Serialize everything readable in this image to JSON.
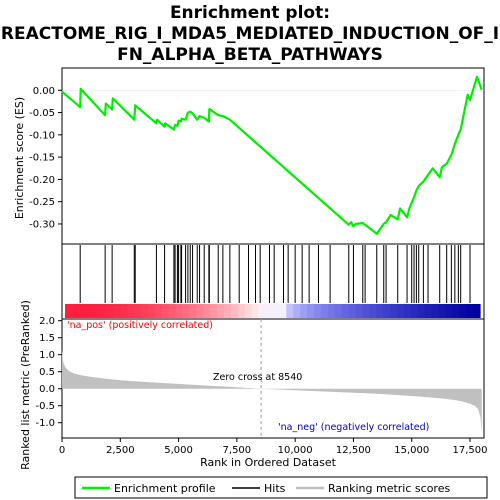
{
  "title_line1": "Enrichment plot:",
  "title_line2": "REACTOME_RIG_I_MDA5_MEDIATED_INDUCTION_OF_I",
  "title_line3": "FN_ALPHA_BETA_PATHWAYS",
  "colors": {
    "enrichment_line": "#00ee00",
    "hits": "#000000",
    "metric_fill": "#c0c0c0",
    "pos_label": "#ff0000",
    "neg_label": "#0000cc",
    "zero_cross_line": "#a0a0a0",
    "frame": "#000000"
  },
  "chart_data": [
    {
      "type": "line",
      "panel": "enrichment",
      "ylabel": "Enrichment score (ES)",
      "ylim": [
        -0.345,
        0.05
      ],
      "yticks": [
        -0.3,
        -0.25,
        -0.2,
        -0.15,
        -0.1,
        -0.05,
        0.0
      ],
      "ytick_labels": [
        "-0.30",
        "-0.25",
        "-0.20",
        "-0.15",
        "-0.10",
        "-0.05",
        "0.00"
      ],
      "xlim": [
        0,
        18100
      ],
      "grid": false,
      "series": [
        {
          "name": "Enrichment profile",
          "x": [
            0,
            780,
            800,
            1850,
            1880,
            2150,
            2180,
            3100,
            3140,
            4050,
            4080,
            4400,
            4420,
            4800,
            4850,
            4950,
            5000,
            5100,
            5130,
            5300,
            5400,
            5500,
            5600,
            5800,
            5900,
            6100,
            6300,
            6320,
            6700,
            6900,
            7200,
            12300,
            12400,
            12500,
            12600,
            12900,
            13000,
            13500,
            13800,
            13900,
            14100,
            14400,
            14500,
            14800,
            14900,
            15000,
            15100,
            15200,
            15300,
            15500,
            15700,
            15900,
            16200,
            16300,
            16500,
            16700,
            16850,
            17000,
            17100,
            17400,
            17500,
            17800,
            18000
          ],
          "y": [
            -0.003,
            -0.038,
            0.003,
            -0.056,
            -0.03,
            -0.043,
            -0.018,
            -0.066,
            -0.034,
            -0.074,
            -0.066,
            -0.082,
            -0.074,
            -0.088,
            -0.078,
            -0.08,
            -0.068,
            -0.07,
            -0.064,
            -0.066,
            -0.05,
            -0.048,
            -0.052,
            -0.066,
            -0.058,
            -0.062,
            -0.07,
            -0.042,
            -0.056,
            -0.058,
            -0.066,
            -0.302,
            -0.296,
            -0.305,
            -0.3,
            -0.298,
            -0.302,
            -0.322,
            -0.3,
            -0.296,
            -0.28,
            -0.29,
            -0.265,
            -0.285,
            -0.265,
            -0.252,
            -0.24,
            -0.225,
            -0.215,
            -0.205,
            -0.19,
            -0.175,
            -0.195,
            -0.172,
            -0.165,
            -0.145,
            -0.12,
            -0.1,
            -0.088,
            -0.01,
            -0.022,
            0.03,
            0.001
          ]
        }
      ]
    },
    {
      "type": "scatter",
      "panel": "hits",
      "name": "Hits",
      "x": [
        780,
        1850,
        2150,
        3100,
        3140,
        4050,
        4400,
        4800,
        4850,
        4950,
        5000,
        5100,
        5130,
        5300,
        5400,
        5500,
        5600,
        5800,
        5900,
        6100,
        6300,
        6320,
        6700,
        6900,
        7200,
        7600,
        8000,
        8300,
        8500,
        8900,
        9100,
        9500,
        9700,
        10000,
        10300,
        10600,
        11000,
        11500,
        12300,
        12500,
        12900,
        13000,
        13500,
        13800,
        13900,
        14400,
        14800,
        15000,
        15100,
        15200,
        15300,
        15500,
        15700,
        16200,
        16500,
        16700,
        16850,
        17000,
        17100,
        17500
      ]
    },
    {
      "type": "area",
      "panel": "ranked_list_metric",
      "ylabel": "Ranked list metric (PreRanked)",
      "xlabel": "Rank in Ordered Dataset",
      "ylim": [
        -1.45,
        2.05
      ],
      "yticks": [
        -1.0,
        -0.5,
        0.0,
        0.5,
        1.0,
        1.5,
        2.0
      ],
      "ytick_labels": [
        "-1.0",
        "-0.5",
        "0.0",
        "0.5",
        "1.0",
        "1.5",
        "2.0"
      ],
      "xlim": [
        0,
        18100
      ],
      "xticks": [
        0,
        2500,
        5000,
        7500,
        10000,
        12500,
        15000,
        17500
      ],
      "xtick_labels": [
        "0",
        "2,500",
        "5,000",
        "7,500",
        "10,000",
        "12,500",
        "15,000",
        "17,500"
      ],
      "x": [
        0,
        50,
        150,
        300,
        500,
        800,
        1200,
        1800,
        2500,
        3500,
        4500,
        5500,
        6500,
        7500,
        8540,
        9500,
        10500,
        11500,
        12500,
        13500,
        14500,
        15500,
        16200,
        16800,
        17200,
        17500,
        17700,
        17850,
        17950,
        18000
      ],
      "values": [
        1.15,
        0.78,
        0.62,
        0.52,
        0.45,
        0.4,
        0.35,
        0.3,
        0.25,
        0.2,
        0.16,
        0.12,
        0.08,
        0.04,
        0.0,
        -0.03,
        -0.06,
        -0.09,
        -0.12,
        -0.15,
        -0.19,
        -0.24,
        -0.28,
        -0.33,
        -0.38,
        -0.44,
        -0.5,
        -0.6,
        -0.85,
        -1.3
      ],
      "annotations": {
        "pos_label": "'na_pos' (positively correlated)",
        "neg_label": "'na_neg' (negatively correlated)",
        "zero_cross": "Zero cross at 8540",
        "zero_cross_rank": 8540
      }
    }
  ],
  "legend": {
    "placement": "bottom",
    "items": [
      {
        "label": "Enrichment profile"
      },
      {
        "label": "Hits"
      },
      {
        "label": "Ranking metric scores"
      }
    ]
  }
}
